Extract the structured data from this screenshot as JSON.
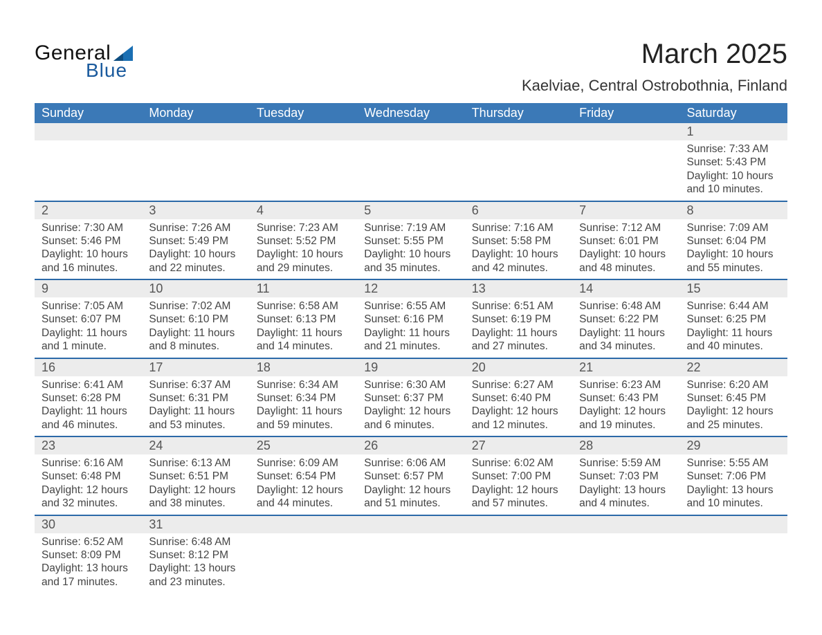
{
  "brand": {
    "general": "General",
    "blue": "Blue"
  },
  "title": {
    "month": "March 2025",
    "location": "Kaelviae, Central Ostrobothnia, Finland"
  },
  "colors": {
    "header_bg": "#3b79b7",
    "header_text": "#ffffff",
    "daynum_bg": "#ececec",
    "row_divider": "#2b69a8",
    "body_text": "#444444",
    "page_bg": "#ffffff",
    "logo_blue": "#1a5a9d"
  },
  "typography": {
    "month_title_fontsize": 40,
    "location_fontsize": 22,
    "dayheader_fontsize": 18,
    "daynum_fontsize": 18,
    "detail_fontsize": 15.5
  },
  "day_headers": [
    "Sunday",
    "Monday",
    "Tuesday",
    "Wednesday",
    "Thursday",
    "Friday",
    "Saturday"
  ],
  "weeks": [
    [
      null,
      null,
      null,
      null,
      null,
      null,
      {
        "n": "1",
        "sr": "Sunrise: 7:33 AM",
        "ss": "Sunset: 5:43 PM",
        "d1": "Daylight: 10 hours",
        "d2": "and 10 minutes."
      }
    ],
    [
      {
        "n": "2",
        "sr": "Sunrise: 7:30 AM",
        "ss": "Sunset: 5:46 PM",
        "d1": "Daylight: 10 hours",
        "d2": "and 16 minutes."
      },
      {
        "n": "3",
        "sr": "Sunrise: 7:26 AM",
        "ss": "Sunset: 5:49 PM",
        "d1": "Daylight: 10 hours",
        "d2": "and 22 minutes."
      },
      {
        "n": "4",
        "sr": "Sunrise: 7:23 AM",
        "ss": "Sunset: 5:52 PM",
        "d1": "Daylight: 10 hours",
        "d2": "and 29 minutes."
      },
      {
        "n": "5",
        "sr": "Sunrise: 7:19 AM",
        "ss": "Sunset: 5:55 PM",
        "d1": "Daylight: 10 hours",
        "d2": "and 35 minutes."
      },
      {
        "n": "6",
        "sr": "Sunrise: 7:16 AM",
        "ss": "Sunset: 5:58 PM",
        "d1": "Daylight: 10 hours",
        "d2": "and 42 minutes."
      },
      {
        "n": "7",
        "sr": "Sunrise: 7:12 AM",
        "ss": "Sunset: 6:01 PM",
        "d1": "Daylight: 10 hours",
        "d2": "and 48 minutes."
      },
      {
        "n": "8",
        "sr": "Sunrise: 7:09 AM",
        "ss": "Sunset: 6:04 PM",
        "d1": "Daylight: 10 hours",
        "d2": "and 55 minutes."
      }
    ],
    [
      {
        "n": "9",
        "sr": "Sunrise: 7:05 AM",
        "ss": "Sunset: 6:07 PM",
        "d1": "Daylight: 11 hours",
        "d2": "and 1 minute."
      },
      {
        "n": "10",
        "sr": "Sunrise: 7:02 AM",
        "ss": "Sunset: 6:10 PM",
        "d1": "Daylight: 11 hours",
        "d2": "and 8 minutes."
      },
      {
        "n": "11",
        "sr": "Sunrise: 6:58 AM",
        "ss": "Sunset: 6:13 PM",
        "d1": "Daylight: 11 hours",
        "d2": "and 14 minutes."
      },
      {
        "n": "12",
        "sr": "Sunrise: 6:55 AM",
        "ss": "Sunset: 6:16 PM",
        "d1": "Daylight: 11 hours",
        "d2": "and 21 minutes."
      },
      {
        "n": "13",
        "sr": "Sunrise: 6:51 AM",
        "ss": "Sunset: 6:19 PM",
        "d1": "Daylight: 11 hours",
        "d2": "and 27 minutes."
      },
      {
        "n": "14",
        "sr": "Sunrise: 6:48 AM",
        "ss": "Sunset: 6:22 PM",
        "d1": "Daylight: 11 hours",
        "d2": "and 34 minutes."
      },
      {
        "n": "15",
        "sr": "Sunrise: 6:44 AM",
        "ss": "Sunset: 6:25 PM",
        "d1": "Daylight: 11 hours",
        "d2": "and 40 minutes."
      }
    ],
    [
      {
        "n": "16",
        "sr": "Sunrise: 6:41 AM",
        "ss": "Sunset: 6:28 PM",
        "d1": "Daylight: 11 hours",
        "d2": "and 46 minutes."
      },
      {
        "n": "17",
        "sr": "Sunrise: 6:37 AM",
        "ss": "Sunset: 6:31 PM",
        "d1": "Daylight: 11 hours",
        "d2": "and 53 minutes."
      },
      {
        "n": "18",
        "sr": "Sunrise: 6:34 AM",
        "ss": "Sunset: 6:34 PM",
        "d1": "Daylight: 11 hours",
        "d2": "and 59 minutes."
      },
      {
        "n": "19",
        "sr": "Sunrise: 6:30 AM",
        "ss": "Sunset: 6:37 PM",
        "d1": "Daylight: 12 hours",
        "d2": "and 6 minutes."
      },
      {
        "n": "20",
        "sr": "Sunrise: 6:27 AM",
        "ss": "Sunset: 6:40 PM",
        "d1": "Daylight: 12 hours",
        "d2": "and 12 minutes."
      },
      {
        "n": "21",
        "sr": "Sunrise: 6:23 AM",
        "ss": "Sunset: 6:43 PM",
        "d1": "Daylight: 12 hours",
        "d2": "and 19 minutes."
      },
      {
        "n": "22",
        "sr": "Sunrise: 6:20 AM",
        "ss": "Sunset: 6:45 PM",
        "d1": "Daylight: 12 hours",
        "d2": "and 25 minutes."
      }
    ],
    [
      {
        "n": "23",
        "sr": "Sunrise: 6:16 AM",
        "ss": "Sunset: 6:48 PM",
        "d1": "Daylight: 12 hours",
        "d2": "and 32 minutes."
      },
      {
        "n": "24",
        "sr": "Sunrise: 6:13 AM",
        "ss": "Sunset: 6:51 PM",
        "d1": "Daylight: 12 hours",
        "d2": "and 38 minutes."
      },
      {
        "n": "25",
        "sr": "Sunrise: 6:09 AM",
        "ss": "Sunset: 6:54 PM",
        "d1": "Daylight: 12 hours",
        "d2": "and 44 minutes."
      },
      {
        "n": "26",
        "sr": "Sunrise: 6:06 AM",
        "ss": "Sunset: 6:57 PM",
        "d1": "Daylight: 12 hours",
        "d2": "and 51 minutes."
      },
      {
        "n": "27",
        "sr": "Sunrise: 6:02 AM",
        "ss": "Sunset: 7:00 PM",
        "d1": "Daylight: 12 hours",
        "d2": "and 57 minutes."
      },
      {
        "n": "28",
        "sr": "Sunrise: 5:59 AM",
        "ss": "Sunset: 7:03 PM",
        "d1": "Daylight: 13 hours",
        "d2": "and 4 minutes."
      },
      {
        "n": "29",
        "sr": "Sunrise: 5:55 AM",
        "ss": "Sunset: 7:06 PM",
        "d1": "Daylight: 13 hours",
        "d2": "and 10 minutes."
      }
    ],
    [
      {
        "n": "30",
        "sr": "Sunrise: 6:52 AM",
        "ss": "Sunset: 8:09 PM",
        "d1": "Daylight: 13 hours",
        "d2": "and 17 minutes."
      },
      {
        "n": "31",
        "sr": "Sunrise: 6:48 AM",
        "ss": "Sunset: 8:12 PM",
        "d1": "Daylight: 13 hours",
        "d2": "and 23 minutes."
      },
      null,
      null,
      null,
      null,
      null
    ]
  ]
}
